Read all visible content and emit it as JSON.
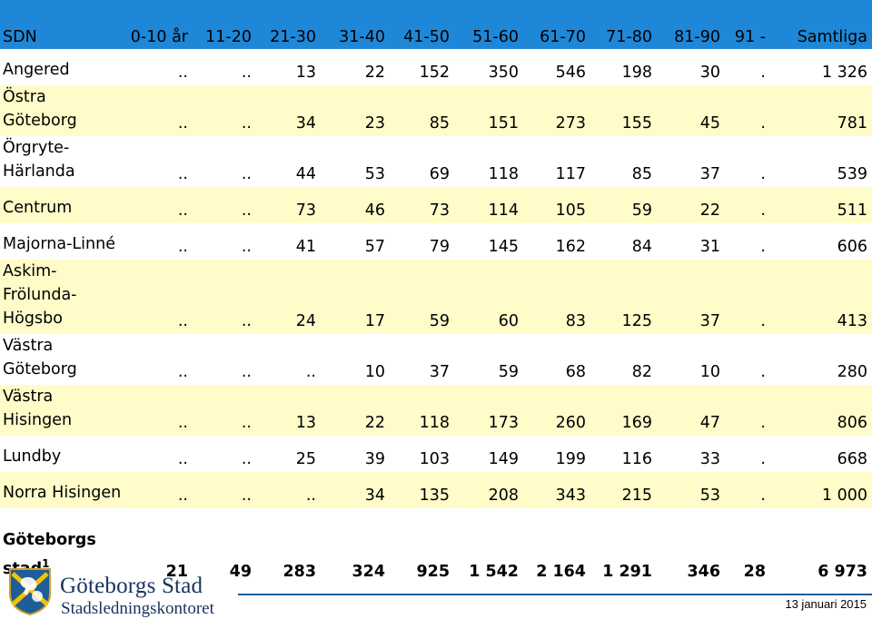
{
  "table": {
    "headers": [
      "SDN",
      "0-10 år",
      "11-20",
      "21-30",
      "31-40",
      "41-50",
      "51-60",
      "61-70",
      "71-80",
      "81-90",
      "91 -",
      "Samtliga"
    ],
    "rows": [
      {
        "name": "Angered",
        "values": [
          "..",
          "..",
          "13",
          "22",
          "152",
          "350",
          "546",
          "198",
          "30",
          ".",
          "1 326"
        ]
      },
      {
        "name": "Östra Göteborg",
        "values": [
          "..",
          "..",
          "34",
          "23",
          "85",
          "151",
          "273",
          "155",
          "45",
          ".",
          "781"
        ]
      },
      {
        "name": "Örgryte-Härlanda",
        "values": [
          "..",
          "..",
          "44",
          "53",
          "69",
          "118",
          "117",
          "85",
          "37",
          ".",
          "539"
        ]
      },
      {
        "name": "Centrum",
        "values": [
          "..",
          "..",
          "73",
          "46",
          "73",
          "114",
          "105",
          "59",
          "22",
          ".",
          "511"
        ]
      },
      {
        "name": "Majorna-Linné",
        "values": [
          "..",
          "..",
          "41",
          "57",
          "79",
          "145",
          "162",
          "84",
          "31",
          ".",
          "606"
        ]
      },
      {
        "name": "Askim-Frölunda-Högsbo",
        "values": [
          "..",
          "..",
          "24",
          "17",
          "59",
          "60",
          "83",
          "125",
          "37",
          ".",
          "413"
        ]
      },
      {
        "name": "Västra Göteborg",
        "values": [
          "..",
          "..",
          "..",
          "10",
          "37",
          "59",
          "68",
          "82",
          "10",
          ".",
          "280"
        ]
      },
      {
        "name": "Västra Hisingen",
        "values": [
          "..",
          "..",
          "13",
          "22",
          "118",
          "173",
          "260",
          "169",
          "47",
          ".",
          "806"
        ]
      },
      {
        "name": "Lundby",
        "values": [
          "..",
          "..",
          "25",
          "39",
          "103",
          "149",
          "199",
          "116",
          "33",
          ".",
          "668"
        ]
      },
      {
        "name": "Norra Hisingen",
        "values": [
          "..",
          "..",
          "..",
          "34",
          "135",
          "208",
          "343",
          "215",
          "53",
          ".",
          "1 000"
        ]
      }
    ],
    "total": {
      "name": "Göteborgs stad",
      "footnote": "1",
      "values": [
        "21",
        "49",
        "283",
        "324",
        "925",
        "1 542",
        "2 164",
        "1 291",
        "346",
        "28",
        "6 973"
      ]
    }
  },
  "footer": {
    "org_name": "Göteborgs Stad",
    "org_sub": "Stadsledningskontoret",
    "date": "13 januari 2015"
  },
  "colors": {
    "header": "#1f87d7",
    "stripe": "#fffcc9",
    "brand": "#16335c"
  }
}
